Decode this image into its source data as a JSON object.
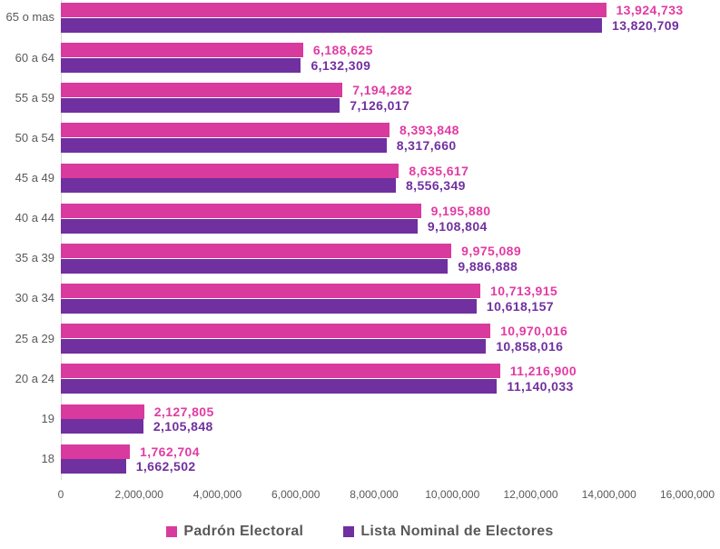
{
  "chart_data": {
    "type": "bar",
    "orientation": "horizontal",
    "title": "",
    "categories": [
      "65 o mas",
      "60 a 64",
      "55 a 59",
      "50 a 54",
      "45 a 49",
      "40 a 44",
      "35 a 39",
      "30 a 34",
      "25 a 29",
      "20 a 24",
      "19",
      "18"
    ],
    "series": [
      {
        "name": "Padrón Electoral",
        "color": "#d93a9d",
        "label_color": "#e23ba3",
        "values": [
          13924733,
          6188625,
          7194282,
          8393848,
          8635617,
          9195880,
          9975089,
          10713915,
          10970016,
          11216900,
          2127805,
          1762704
        ],
        "labels": [
          "13,924,733",
          "6,188,625",
          "7,194,282",
          "8,393,848",
          "8,635,617",
          "9,195,880",
          "9,975,089",
          "10,713,915",
          "10,970,016",
          "11,216,900",
          "2,127,805",
          "1,762,704"
        ]
      },
      {
        "name": "Lista Nominal de Electores",
        "color": "#7030a0",
        "label_color": "#7030a0",
        "values": [
          13820709,
          6132309,
          7126017,
          8317660,
          8556349,
          9108804,
          9886888,
          10618157,
          10858016,
          11140033,
          2105848,
          1662502
        ],
        "labels": [
          "13,820,709",
          "6,132,309",
          "7,126,017",
          "8,317,660",
          "8,556,349",
          "9,108,804",
          "9,886,888",
          "10,618,157",
          "10,858,016",
          "11,140,033",
          "2,105,848",
          "1,662,502"
        ]
      }
    ],
    "xlim": [
      0,
      16000000
    ],
    "x_tick_values": [
      0,
      2000000,
      4000000,
      6000000,
      8000000,
      10000000,
      12000000,
      14000000,
      16000000
    ],
    "x_tick_labels": [
      "0",
      "2,000,000",
      "4,000,000",
      "6,000,000",
      "8,000,000",
      "10,000,000",
      "12,000,000",
      "14,000,000",
      "16,000,000"
    ],
    "grid": false,
    "legend_position": "bottom"
  },
  "legend": {
    "items": [
      {
        "label": "Padrón Electoral",
        "color": "#d93a9d"
      },
      {
        "label": "Lista Nominal de Electores",
        "color": "#7030a0"
      }
    ]
  },
  "colors": {
    "background": "#ffffff",
    "category_text": "#595959",
    "axis_text": "#595959",
    "axis_line": "#d9d9d9"
  }
}
